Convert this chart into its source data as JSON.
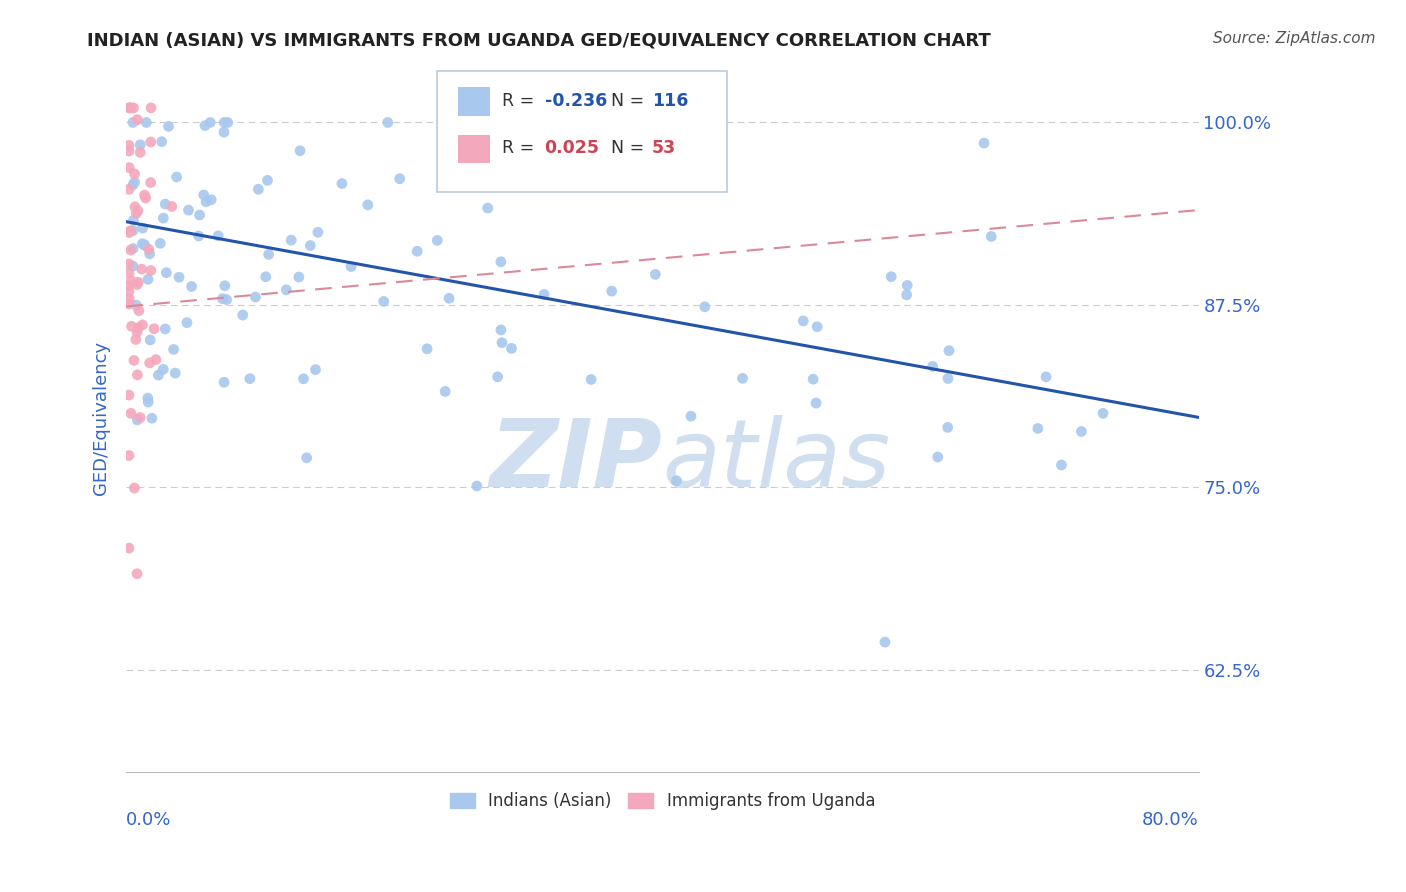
{
  "title": "INDIAN (ASIAN) VS IMMIGRANTS FROM UGANDA GED/EQUIVALENCY CORRELATION CHART",
  "source": "Source: ZipAtlas.com",
  "ylabel": "GED/Equivalency",
  "ytick_values": [
    0.625,
    0.75,
    0.875,
    1.0
  ],
  "xmin": 0.0,
  "xmax": 0.8,
  "ymin": 0.555,
  "ymax": 1.04,
  "indian_color": "#a8c8ee",
  "uganda_color": "#f4a8bc",
  "trendline_blue": "#2255aa",
  "trendline_pink": "#dd8899",
  "watermark_color": "#d0dff0",
  "background_color": "#ffffff",
  "grid_color": "#cccccc",
  "axis_label_color": "#3366cc",
  "title_fontsize": 13,
  "source_fontsize": 11,
  "legend_r1_val": "-0.236",
  "legend_n1_val": "116",
  "legend_r2_val": "0.025",
  "legend_n2_val": "53"
}
